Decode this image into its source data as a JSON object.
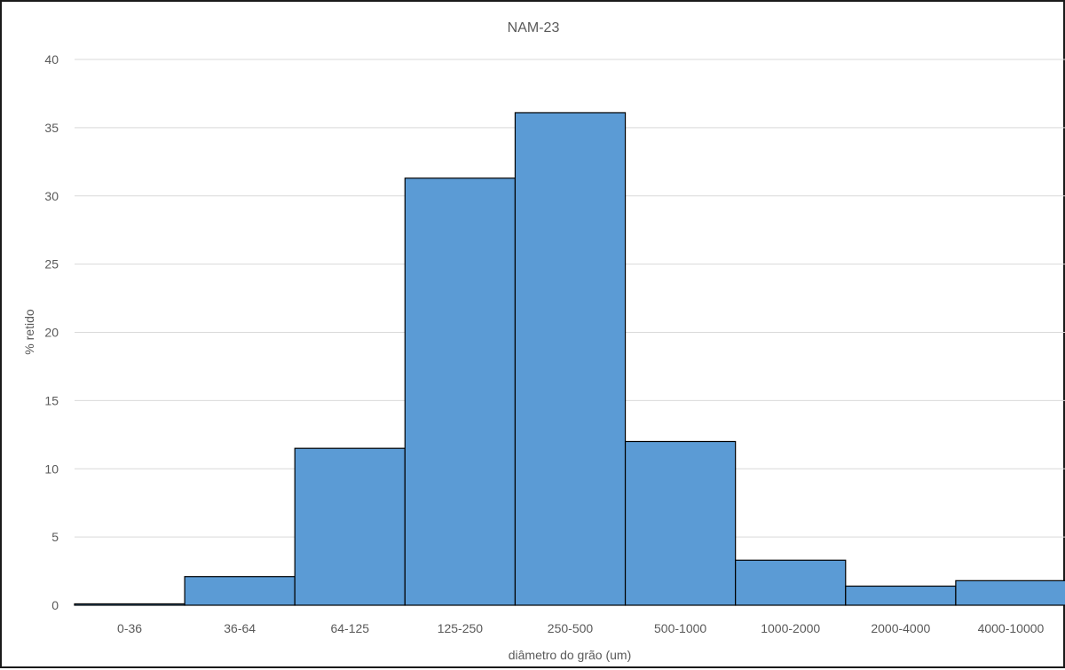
{
  "chart_data": {
    "type": "bar",
    "title": "NAM-23",
    "xlabel": "diâmetro do grão (um)",
    "ylabel": "% retido",
    "categories": [
      "0-36",
      "36-64",
      "64-125",
      "125-250",
      "250-500",
      "500-1000",
      "1000-2000",
      "2000-4000",
      "4000-10000"
    ],
    "values": [
      0.1,
      2.1,
      11.5,
      31.3,
      36.1,
      12.0,
      3.3,
      1.4,
      1.8
    ],
    "ylim": [
      0,
      40
    ],
    "yticks": [
      "0",
      "5",
      "10",
      "15",
      "20",
      "25",
      "30",
      "35",
      "40"
    ],
    "grid": true,
    "legend": "none",
    "bar_color": "#5b9bd5",
    "bar_edge_color": "#000000"
  }
}
